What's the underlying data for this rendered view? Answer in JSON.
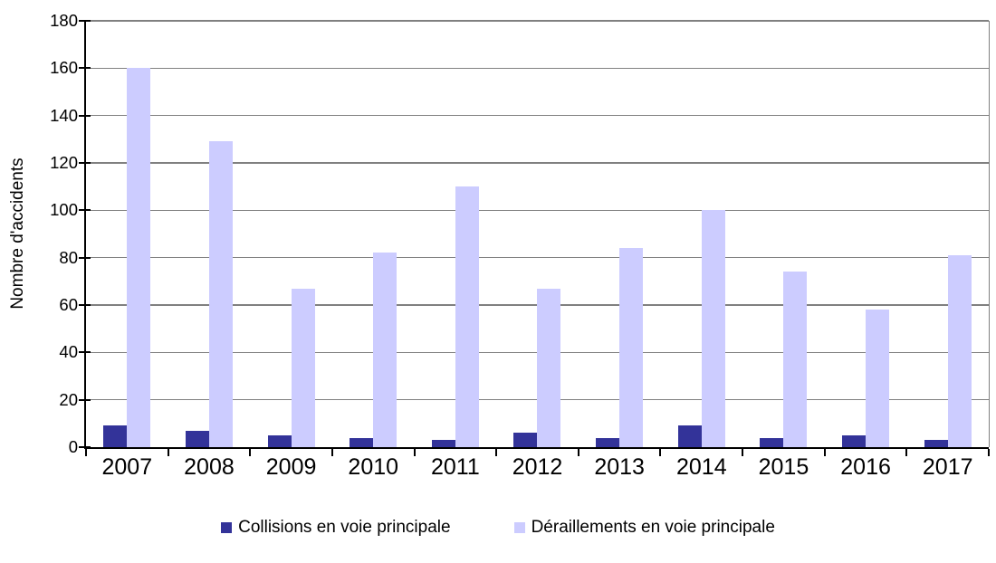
{
  "chart_data": {
    "type": "bar",
    "title": "",
    "xlabel": "",
    "ylabel": "Nombre d'accidents",
    "categories": [
      "2007",
      "2008",
      "2009",
      "2010",
      "2011",
      "2012",
      "2013",
      "2014",
      "2015",
      "2016",
      "2017"
    ],
    "series": [
      {
        "name": "Collisions en voie principale",
        "color": "#333399",
        "values": [
          9,
          7,
          5,
          4,
          3,
          6,
          4,
          9,
          4,
          5,
          3
        ]
      },
      {
        "name": "Déraillements en voie principale",
        "color": "#CCCCFF",
        "values": [
          160,
          129,
          67,
          82,
          110,
          67,
          84,
          100,
          74,
          58,
          81
        ]
      }
    ],
    "ylim": [
      0,
      180
    ],
    "yticks": [
      0,
      20,
      40,
      60,
      80,
      100,
      120,
      140,
      160,
      180
    ],
    "grid": true,
    "legend_position": "bottom",
    "colors": {
      "axis": "#000000",
      "gridline": "#808080",
      "background": "#FFFFFF"
    }
  }
}
